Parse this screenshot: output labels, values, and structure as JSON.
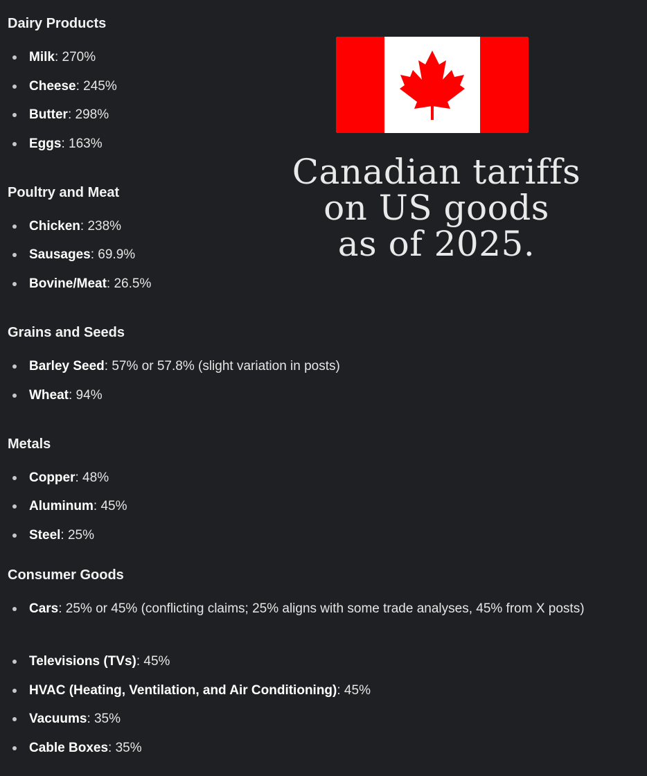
{
  "title_lines": [
    "Canadian tariffs",
    "on US goods",
    "as of 2025."
  ],
  "colors": {
    "background": "#1f2023",
    "flag_red": "#ff0000",
    "flag_white": "#ffffff"
  },
  "flag_icon": "canada-flag",
  "sections": [
    {
      "heading": "Dairy Products",
      "items": [
        {
          "label": "Milk",
          "value": ": 270%"
        },
        {
          "label": "Cheese",
          "value": ": 245%"
        },
        {
          "label": "Butter",
          "value": ": 298%"
        },
        {
          "label": "Eggs",
          "value": ": 163%"
        }
      ]
    },
    {
      "heading": "Poultry and Meat",
      "items": [
        {
          "label": "Chicken",
          "value": ": 238%"
        },
        {
          "label": "Sausages",
          "value": ": 69.9%"
        },
        {
          "label": "Bovine/Meat",
          "value": ": 26.5%"
        }
      ]
    },
    {
      "heading": "Grains and Seeds",
      "items": [
        {
          "label": "Barley Seed",
          "value": ": 57% or 57.8% (slight variation in posts)"
        },
        {
          "label": "Wheat",
          "value": ": 94%"
        }
      ]
    },
    {
      "heading": "Metals",
      "items": [
        {
          "label": "Copper",
          "value": ": 48%"
        },
        {
          "label": "Aluminum",
          "value": ": 45%"
        },
        {
          "label": "Steel",
          "value": ": 25%"
        }
      ]
    },
    {
      "heading": "Consumer Goods",
      "items": [
        {
          "label": "Cars",
          "value": ": 25% or 45% (conflicting claims; 25% aligns with some trade analyses, 45% from X posts)"
        },
        {
          "label": "Televisions (TVs)",
          "value": ": 45%"
        },
        {
          "label": "HVAC (Heating, Ventilation, and Air Conditioning)",
          "value": ": 45%"
        },
        {
          "label": "Vacuums",
          "value": ": 35%"
        },
        {
          "label": "Cable Boxes",
          "value": ": 35%"
        }
      ]
    }
  ]
}
